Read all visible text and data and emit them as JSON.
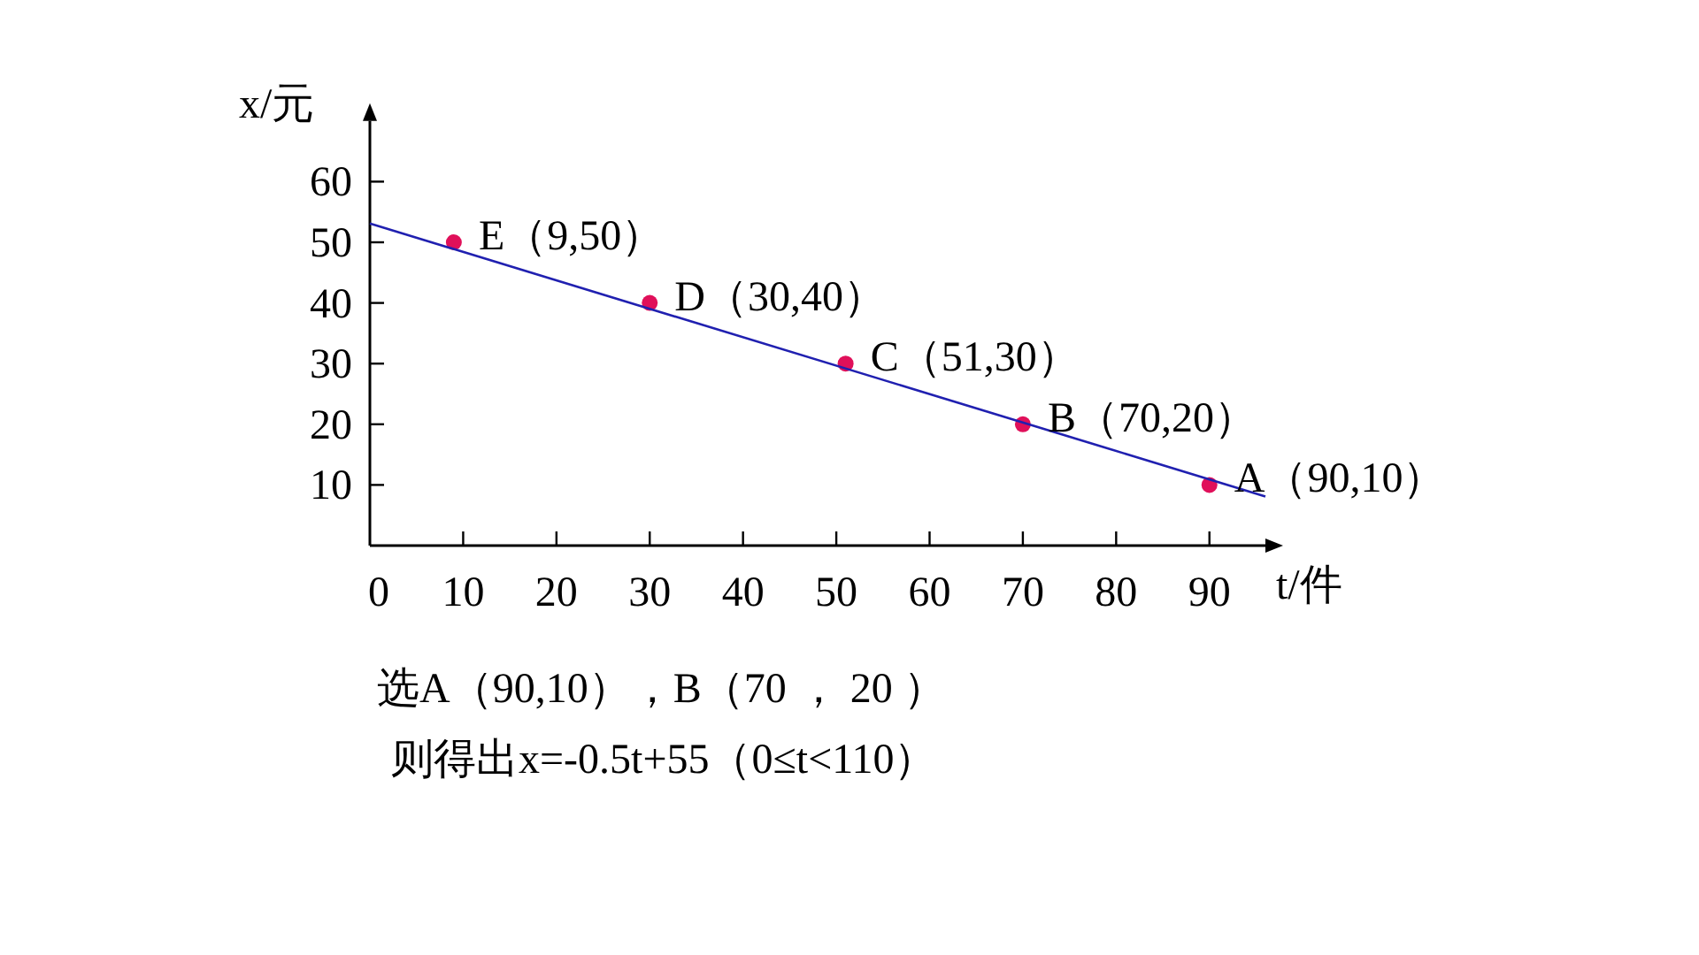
{
  "chart_data": {
    "type": "scatter",
    "xlabel": "t/件",
    "ylabel": "x/元",
    "xlim": [
      0,
      96
    ],
    "ylim": [
      0,
      70
    ],
    "xticks": [
      0,
      10,
      20,
      30,
      40,
      50,
      60,
      70,
      80,
      90
    ],
    "yticks": [
      10,
      20,
      30,
      40,
      50,
      60
    ],
    "grid": false,
    "marker": "circle",
    "series": [
      {
        "type": "scatter",
        "color": "#e0105a",
        "x": [
          90,
          70,
          51,
          30,
          9
        ],
        "values": [
          10,
          20,
          30,
          40,
          50
        ]
      },
      {
        "type": "line",
        "color": "#2020b0",
        "marker": "none",
        "line_style": "solid",
        "x": [
          0,
          96
        ],
        "values": [
          53.1,
          8.1
        ]
      }
    ],
    "annotations": [
      {
        "text": "A（90,10）",
        "x": 90,
        "y": 10
      },
      {
        "text": "B（70,20）",
        "x": 70,
        "y": 20
      },
      {
        "text": "C（51,30）",
        "x": 51,
        "y": 30
      },
      {
        "text": "D（30,40）",
        "x": 30,
        "y": 40
      },
      {
        "text": "E（9,50）",
        "x": 9,
        "y": 50
      },
      "选A（90,10），B（70 ， 20 ）",
      "则得出x=-0.5t+55（0≤t<110）"
    ]
  }
}
